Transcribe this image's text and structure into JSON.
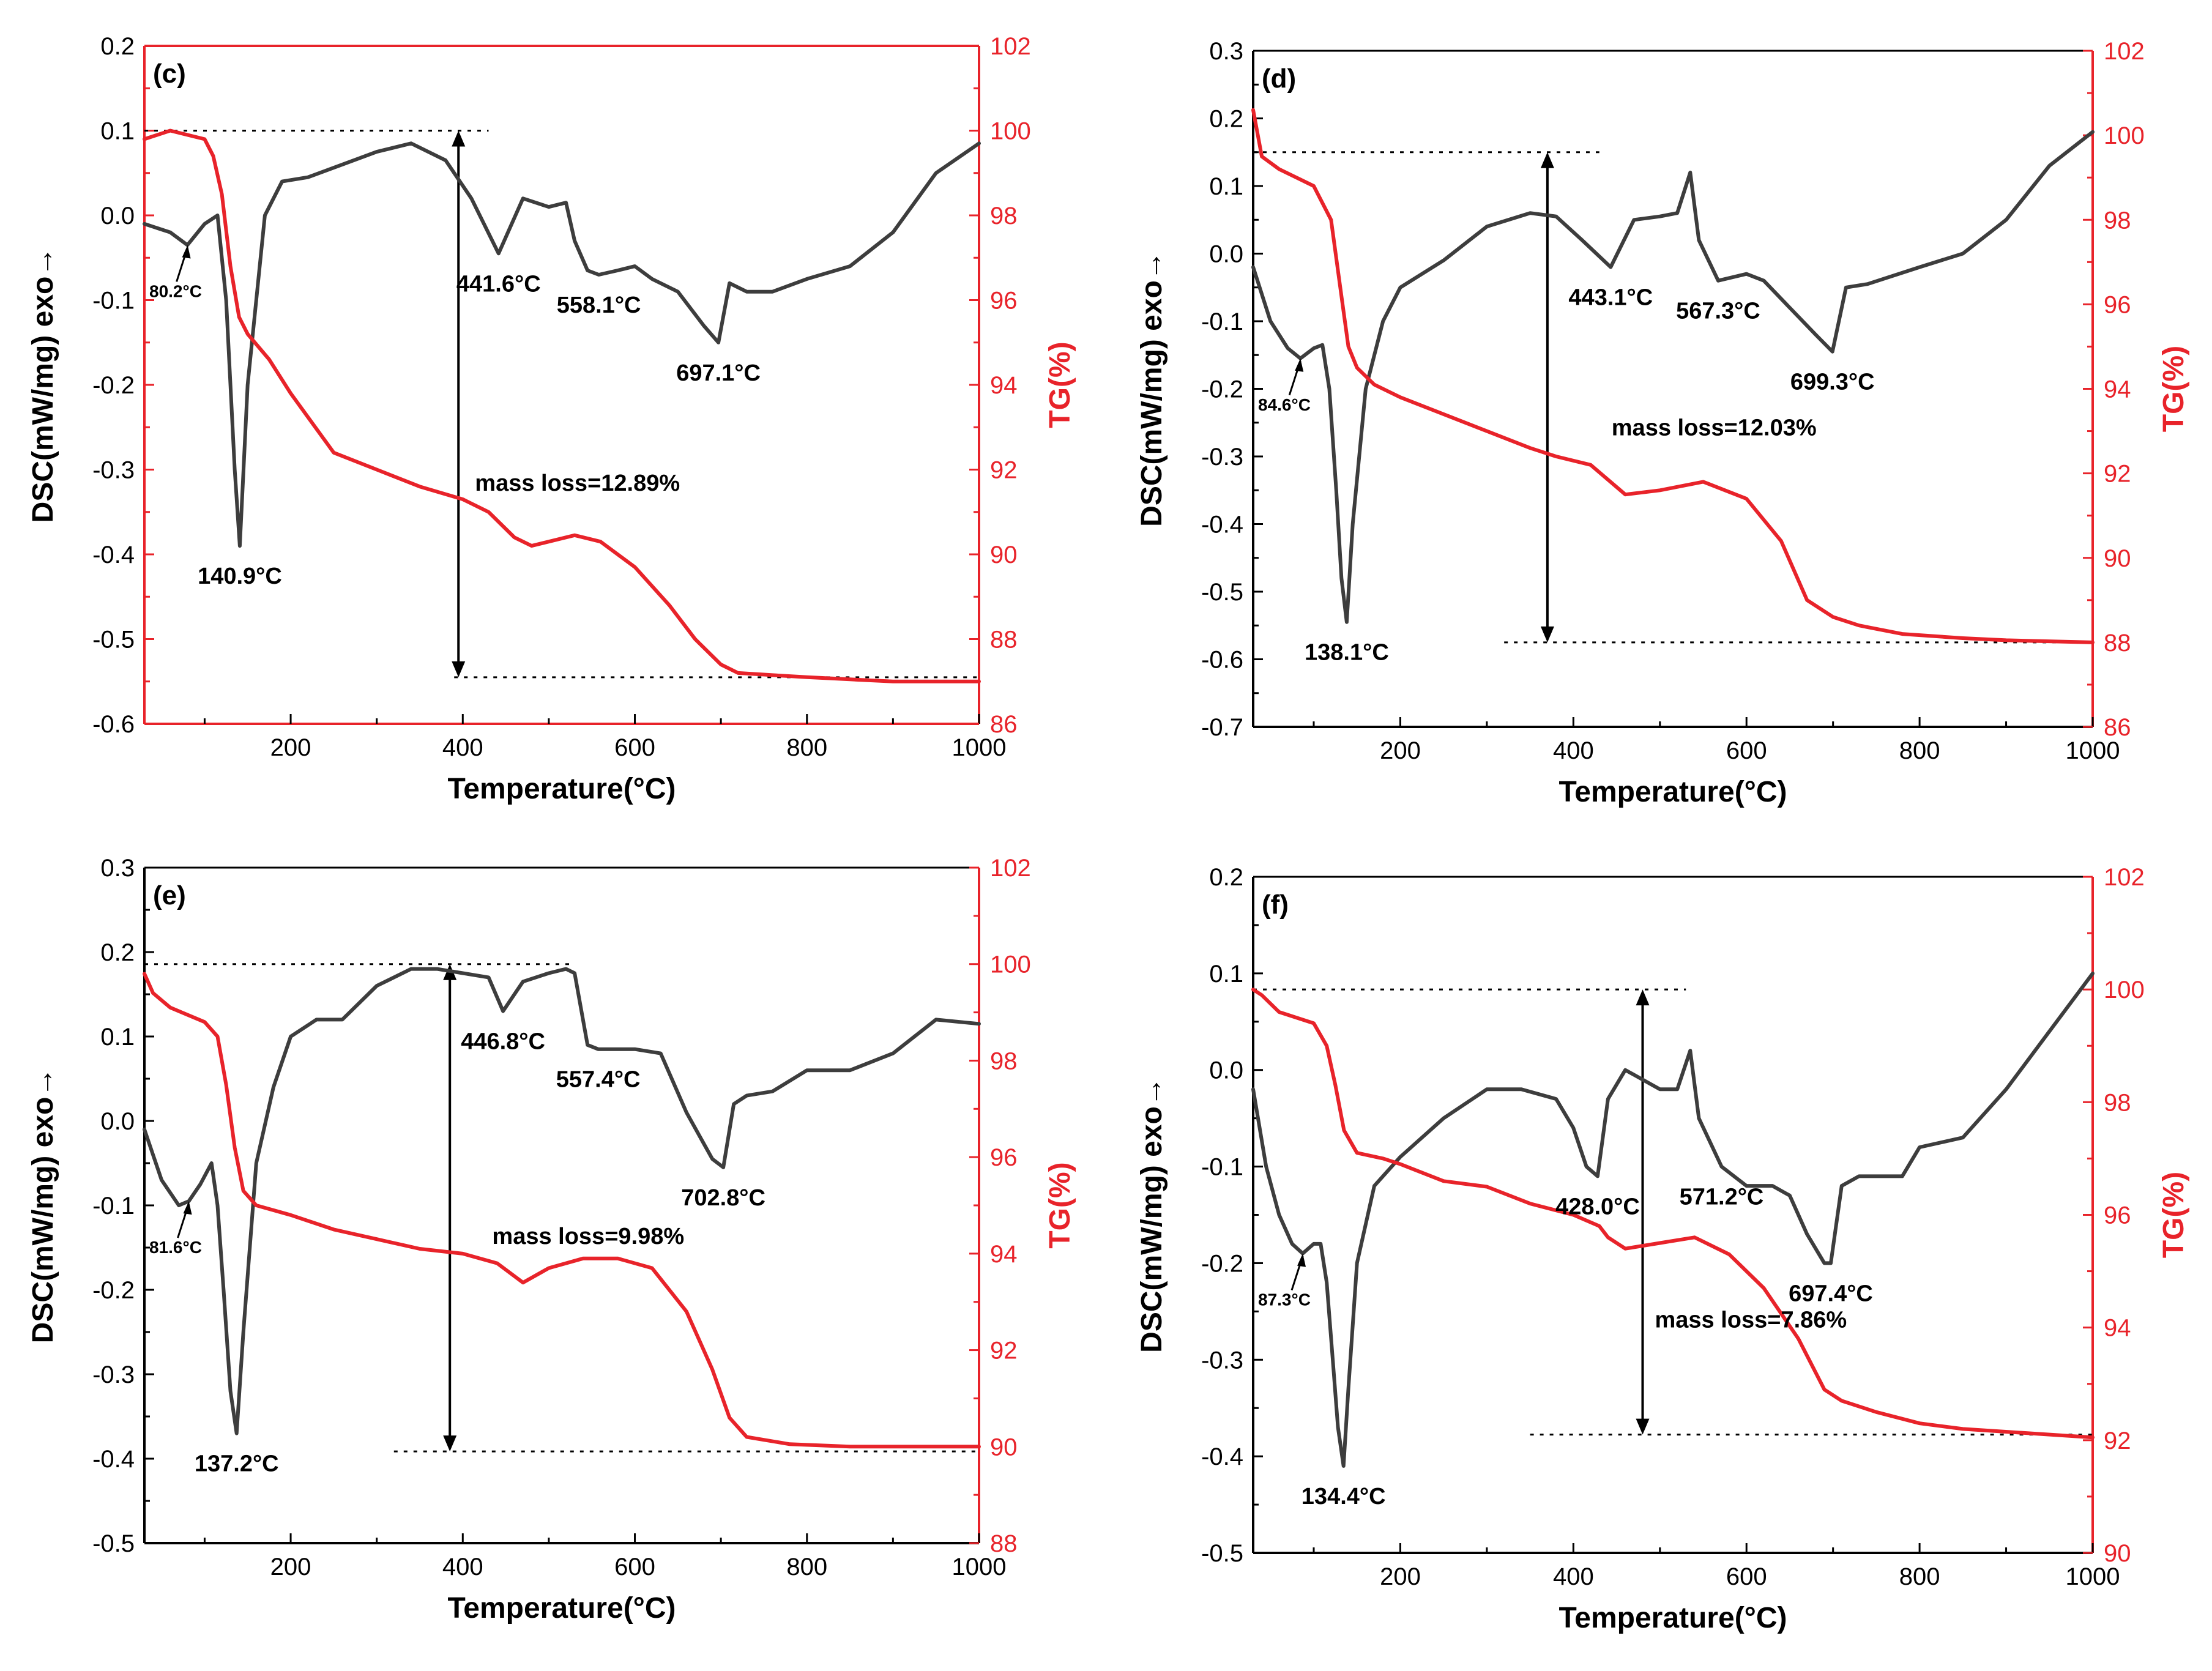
{
  "colors": {
    "dsc": "#3d3d3d",
    "tg": "#e8232a",
    "axis": "#000000",
    "red_axis": "#e8232a"
  },
  "chart_data": [
    {
      "type": "line",
      "panel": "(c)",
      "xlabel": "Temperature(°C)",
      "ylabel_left": "DSC(mW/mg) exo→",
      "ylabel_right": "TG(%)",
      "xlim": [
        30,
        1000
      ],
      "ylim_left": [
        -0.6,
        0.2
      ],
      "ylim_right": [
        86,
        102
      ],
      "x_ticks": [
        200,
        400,
        600,
        800,
        1000
      ],
      "y_left_ticks": [
        -0.6,
        -0.5,
        -0.4,
        -0.3,
        -0.2,
        -0.1,
        0.0,
        0.1,
        0.2
      ],
      "y_right_ticks": [
        86,
        88,
        90,
        92,
        94,
        96,
        98,
        100,
        102
      ],
      "x_tick_labels": [
        "200",
        "400",
        "600",
        "800",
        "1000"
      ],
      "y_left_tick_labels": [
        "-0.6",
        "-0.5",
        "-0.4",
        "-0.3",
        "-0.2",
        "-0.1",
        "0.0",
        "0.1",
        "0.2"
      ],
      "y_right_tick_labels": [
        "86",
        "88",
        "90",
        "92",
        "94",
        "96",
        "98",
        "100",
        "102"
      ],
      "red_frame": true,
      "series": [
        {
          "name": "DSC",
          "axis": "left",
          "x": [
            30,
            60,
            80,
            100,
            115,
            125,
            135,
            140.9,
            150,
            170,
            190,
            220,
            260,
            300,
            340,
            380,
            410,
            441.6,
            470,
            500,
            520,
            530,
            545,
            558.1,
            580,
            600,
            620,
            650,
            680,
            697.1,
            710,
            730,
            760,
            800,
            850,
            900,
            950,
            1000
          ],
          "y": [
            -0.01,
            -0.02,
            -0.035,
            -0.01,
            0.0,
            -0.1,
            -0.3,
            -0.39,
            -0.2,
            0.0,
            0.04,
            0.045,
            0.06,
            0.075,
            0.085,
            0.065,
            0.02,
            -0.045,
            0.02,
            0.01,
            0.015,
            -0.03,
            -0.065,
            -0.07,
            -0.065,
            -0.06,
            -0.075,
            -0.09,
            -0.13,
            -0.15,
            -0.08,
            -0.09,
            -0.09,
            -0.075,
            -0.06,
            -0.02,
            0.05,
            0.085
          ]
        },
        {
          "name": "TG",
          "axis": "right",
          "x": [
            30,
            60,
            100,
            110,
            120,
            130,
            140,
            150,
            175,
            200,
            250,
            300,
            350,
            400,
            430,
            460,
            480,
            500,
            530,
            560,
            600,
            640,
            670,
            700,
            720,
            760,
            800,
            850,
            900,
            1000
          ],
          "y": [
            99.8,
            100.0,
            99.8,
            99.4,
            98.5,
            96.8,
            95.6,
            95.2,
            94.6,
            93.8,
            92.4,
            92.0,
            91.6,
            91.3,
            91.0,
            90.4,
            90.2,
            90.3,
            90.45,
            90.3,
            89.7,
            88.8,
            88.0,
            87.4,
            87.2,
            87.15,
            87.1,
            87.05,
            87.0,
            87.0
          ]
        }
      ],
      "annotations": [
        {
          "text": "80.2°C",
          "x": 80.2,
          "y": -0.035,
          "style": "small",
          "arrow": true
        },
        {
          "text": "140.9°C",
          "x": 140.9,
          "y": -0.39
        },
        {
          "text": "441.6°C",
          "x": 441.6,
          "y": -0.045
        },
        {
          "text": "558.1°C",
          "x": 558.1,
          "y": -0.07
        },
        {
          "text": "697.1°C",
          "x": 697.1,
          "y": -0.15
        },
        {
          "text": "mass loss=12.89%",
          "x": 400,
          "y": 91.5
        }
      ],
      "mass_loss": {
        "x": 395,
        "tg_top": 100.0,
        "tg_bottom": 87.1,
        "dash_top_x": [
          30,
          430
        ],
        "dash_bottom_x": [
          390,
          1000
        ]
      }
    },
    {
      "type": "line",
      "panel": "(d)",
      "xlabel": "Temperature(°C)",
      "ylabel_left": "DSC(mW/mg) exo→",
      "ylabel_right": "TG(%)",
      "xlim": [
        30,
        1000
      ],
      "ylim_left": [
        -0.7,
        0.3
      ],
      "ylim_right": [
        86,
        102
      ],
      "x_ticks": [
        200,
        400,
        600,
        800,
        1000
      ],
      "y_left_ticks": [
        -0.7,
        -0.6,
        -0.5,
        -0.4,
        -0.3,
        -0.2,
        -0.1,
        0.0,
        0.1,
        0.2,
        0.3
      ],
      "y_right_ticks": [
        86,
        88,
        90,
        92,
        94,
        96,
        98,
        100,
        102
      ],
      "x_tick_labels": [
        "200",
        "400",
        "600",
        "800",
        "1000"
      ],
      "y_left_tick_labels": [
        "-0.7",
        "-0.6",
        "-0.5",
        "-0.4",
        "-0.3",
        "-0.2",
        "-0.1",
        "0.0",
        "0.1",
        "0.2",
        "0.3"
      ],
      "y_right_tick_labels": [
        "86",
        "88",
        "90",
        "92",
        "94",
        "96",
        "98",
        "100",
        "102"
      ],
      "red_frame": false,
      "series": [
        {
          "name": "DSC",
          "axis": "left",
          "x": [
            30,
            50,
            70,
            84.6,
            100,
            110,
            118,
            126,
            132,
            138.1,
            145,
            160,
            180,
            200,
            250,
            300,
            350,
            380,
            410,
            443.1,
            470,
            500,
            520,
            535,
            545,
            567.3,
            600,
            620,
            650,
            680,
            699.3,
            715,
            740,
            800,
            850,
            900,
            950,
            1000
          ],
          "y": [
            -0.02,
            -0.1,
            -0.14,
            -0.155,
            -0.14,
            -0.135,
            -0.2,
            -0.35,
            -0.48,
            -0.545,
            -0.4,
            -0.2,
            -0.1,
            -0.05,
            -0.01,
            0.04,
            0.06,
            0.055,
            0.02,
            -0.02,
            0.05,
            0.055,
            0.06,
            0.12,
            0.02,
            -0.04,
            -0.03,
            -0.04,
            -0.08,
            -0.12,
            -0.145,
            -0.05,
            -0.045,
            -0.02,
            0.0,
            0.05,
            0.13,
            0.18
          ]
        },
        {
          "name": "TG",
          "axis": "right",
          "x": [
            30,
            40,
            60,
            80,
            100,
            120,
            130,
            140,
            150,
            170,
            200,
            250,
            300,
            350,
            380,
            420,
            460,
            500,
            550,
            600,
            640,
            670,
            700,
            730,
            780,
            850,
            900,
            1000
          ],
          "y": [
            100.6,
            99.5,
            99.2,
            99.0,
            98.8,
            98.0,
            96.5,
            95.0,
            94.5,
            94.1,
            93.8,
            93.4,
            93.0,
            92.6,
            92.4,
            92.2,
            91.5,
            91.6,
            91.8,
            91.4,
            90.4,
            89.0,
            88.6,
            88.4,
            88.2,
            88.1,
            88.05,
            88.0
          ]
        }
      ],
      "annotations": [
        {
          "text": "84.6°C",
          "x": 84.6,
          "y": -0.155,
          "style": "small",
          "arrow": true
        },
        {
          "text": "138.1°C",
          "x": 138.1,
          "y": -0.545
        },
        {
          "text": "443.1°C",
          "x": 443.1,
          "y": -0.02
        },
        {
          "text": "567.3°C",
          "x": 567.3,
          "y": -0.04
        },
        {
          "text": "699.3°C",
          "x": 699.3,
          "y": -0.145
        },
        {
          "text": "mass loss=12.03%",
          "x": 430,
          "y": 92.9
        }
      ],
      "mass_loss": {
        "x": 370,
        "tg_top": 99.6,
        "tg_bottom": 88.0,
        "dash_top_x": [
          30,
          430
        ],
        "dash_bottom_x": [
          320,
          1000
        ]
      }
    },
    {
      "type": "line",
      "panel": "(e)",
      "xlabel": "Temperature(°C)",
      "ylabel_left": "DSC(mW/mg) exo→",
      "ylabel_right": "TG(%)",
      "xlim": [
        30,
        1000
      ],
      "ylim_left": [
        -0.5,
        0.3
      ],
      "ylim_right": [
        88,
        102
      ],
      "x_ticks": [
        200,
        400,
        600,
        800,
        1000
      ],
      "y_left_ticks": [
        -0.5,
        -0.4,
        -0.3,
        -0.2,
        -0.1,
        0.0,
        0.1,
        0.2,
        0.3
      ],
      "y_right_ticks": [
        88,
        90,
        92,
        94,
        96,
        98,
        100,
        102
      ],
      "x_tick_labels": [
        "200",
        "400",
        "600",
        "800",
        "1000"
      ],
      "y_left_tick_labels": [
        "-0.5",
        "-0.4",
        "-0.3",
        "-0.2",
        "-0.1",
        "0.0",
        "0.1",
        "0.2",
        "0.3"
      ],
      "y_right_tick_labels": [
        "88",
        "90",
        "92",
        "94",
        "96",
        "98",
        "100",
        "102"
      ],
      "red_frame": false,
      "series": [
        {
          "name": "DSC",
          "axis": "left",
          "x": [
            30,
            50,
            70,
            81.6,
            95,
            108,
            115,
            122,
            130,
            137.2,
            145,
            160,
            180,
            200,
            230,
            260,
            300,
            340,
            370,
            400,
            430,
            446.8,
            470,
            500,
            520,
            530,
            545,
            557.4,
            600,
            630,
            660,
            690,
            702.8,
            715,
            730,
            760,
            800,
            850,
            900,
            950,
            1000
          ],
          "y": [
            -0.01,
            -0.07,
            -0.1,
            -0.095,
            -0.075,
            -0.05,
            -0.1,
            -0.2,
            -0.32,
            -0.37,
            -0.25,
            -0.05,
            0.04,
            0.1,
            0.12,
            0.12,
            0.16,
            0.18,
            0.18,
            0.175,
            0.17,
            0.13,
            0.165,
            0.175,
            0.18,
            0.175,
            0.09,
            0.085,
            0.085,
            0.08,
            0.01,
            -0.045,
            -0.055,
            0.02,
            0.03,
            0.035,
            0.06,
            0.06,
            0.08,
            0.12,
            0.115
          ]
        },
        {
          "name": "TG",
          "axis": "right",
          "x": [
            30,
            40,
            60,
            100,
            115,
            125,
            135,
            145,
            160,
            200,
            250,
            300,
            350,
            400,
            440,
            470,
            500,
            540,
            580,
            620,
            660,
            690,
            710,
            730,
            780,
            850,
            900,
            1000
          ],
          "y": [
            99.8,
            99.4,
            99.1,
            98.8,
            98.5,
            97.5,
            96.2,
            95.3,
            95.0,
            94.8,
            94.5,
            94.3,
            94.1,
            94.0,
            93.8,
            93.4,
            93.7,
            93.9,
            93.9,
            93.7,
            92.8,
            91.6,
            90.6,
            90.2,
            90.05,
            90.0,
            90.0,
            90.0
          ]
        }
      ],
      "annotations": [
        {
          "text": "81.6°C",
          "x": 81.6,
          "y": -0.095,
          "style": "small",
          "arrow": true
        },
        {
          "text": "137.2°C",
          "x": 137.2,
          "y": -0.37
        },
        {
          "text": "446.8°C",
          "x": 446.8,
          "y": 0.13
        },
        {
          "text": "557.4°C",
          "x": 557.4,
          "y": 0.085
        },
        {
          "text": "702.8°C",
          "x": 702.8,
          "y": -0.055
        },
        {
          "text": "mass loss=9.98%",
          "x": 420,
          "y": 94.2
        }
      ],
      "mass_loss": {
        "x": 385,
        "tg_top": 100.0,
        "tg_bottom": 89.9,
        "dash_top_x": [
          30,
          530
        ],
        "dash_bottom_x": [
          320,
          1000
        ]
      }
    },
    {
      "type": "line",
      "panel": "(f)",
      "xlabel": "Temperature(°C)",
      "ylabel_left": "DSC(mW/mg) exo→",
      "ylabel_right": "TG(%)",
      "xlim": [
        30,
        1000
      ],
      "ylim_left": [
        -0.5,
        0.2
      ],
      "ylim_right": [
        90,
        102
      ],
      "x_ticks": [
        200,
        400,
        600,
        800,
        1000
      ],
      "y_left_ticks": [
        -0.5,
        -0.4,
        -0.3,
        -0.2,
        -0.1,
        0.0,
        0.1,
        0.2
      ],
      "y_right_ticks": [
        90,
        92,
        94,
        96,
        98,
        100,
        102
      ],
      "x_tick_labels": [
        "200",
        "400",
        "600",
        "800",
        "1000"
      ],
      "y_left_tick_labels": [
        "-0.5",
        "-0.4",
        "-0.3",
        "-0.2",
        "-0.1",
        "0.0",
        "0.1",
        "0.2"
      ],
      "y_right_tick_labels": [
        "90",
        "92",
        "94",
        "96",
        "98",
        "100",
        "102"
      ],
      "red_frame": false,
      "series": [
        {
          "name": "DSC",
          "axis": "left",
          "x": [
            30,
            45,
            60,
            75,
            87.3,
            100,
            108,
            115,
            122,
            128,
            134.4,
            140,
            150,
            170,
            200,
            250,
            300,
            340,
            380,
            400,
            415,
            428.0,
            440,
            460,
            500,
            520,
            535,
            545,
            571.2,
            600,
            630,
            650,
            670,
            690,
            697.4,
            710,
            730,
            780,
            800,
            850,
            900,
            950,
            1000
          ],
          "y": [
            -0.02,
            -0.1,
            -0.15,
            -0.18,
            -0.19,
            -0.18,
            -0.18,
            -0.22,
            -0.3,
            -0.37,
            -0.41,
            -0.33,
            -0.2,
            -0.12,
            -0.09,
            -0.05,
            -0.02,
            -0.02,
            -0.03,
            -0.06,
            -0.1,
            -0.11,
            -0.03,
            0.0,
            -0.02,
            -0.02,
            0.02,
            -0.05,
            -0.1,
            -0.12,
            -0.12,
            -0.13,
            -0.17,
            -0.2,
            -0.2,
            -0.12,
            -0.11,
            -0.11,
            -0.08,
            -0.07,
            -0.02,
            0.04,
            0.1
          ]
        },
        {
          "name": "TG",
          "axis": "right",
          "x": [
            30,
            40,
            60,
            100,
            115,
            125,
            135,
            150,
            180,
            200,
            250,
            300,
            350,
            400,
            430,
            440,
            460,
            500,
            540,
            580,
            620,
            660,
            690,
            710,
            750,
            800,
            850,
            1000
          ],
          "y": [
            100.0,
            99.9,
            99.6,
            99.4,
            99.0,
            98.3,
            97.5,
            97.1,
            97.0,
            96.9,
            96.6,
            96.5,
            96.2,
            96.0,
            95.8,
            95.6,
            95.4,
            95.5,
            95.6,
            95.3,
            94.7,
            93.8,
            92.9,
            92.7,
            92.5,
            92.3,
            92.2,
            92.05
          ]
        }
      ],
      "annotations": [
        {
          "text": "87.3°C",
          "x": 87.3,
          "y": -0.19,
          "style": "small",
          "arrow": true
        },
        {
          "text": "134.4°C",
          "x": 134.4,
          "y": -0.41
        },
        {
          "text": "428.0°C",
          "x": 428.0,
          "y": -0.11
        },
        {
          "text": "571.2°C",
          "x": 571.2,
          "y": -0.1
        },
        {
          "text": "697.4°C",
          "x": 697.4,
          "y": -0.2
        },
        {
          "text": "mass loss=7.86%",
          "x": 480,
          "y": 94.0
        }
      ],
      "mass_loss": {
        "x": 480,
        "tg_top": 100.0,
        "tg_bottom": 92.1,
        "dash_top_x": [
          30,
          530
        ],
        "dash_bottom_x": [
          350,
          1000
        ]
      }
    }
  ]
}
